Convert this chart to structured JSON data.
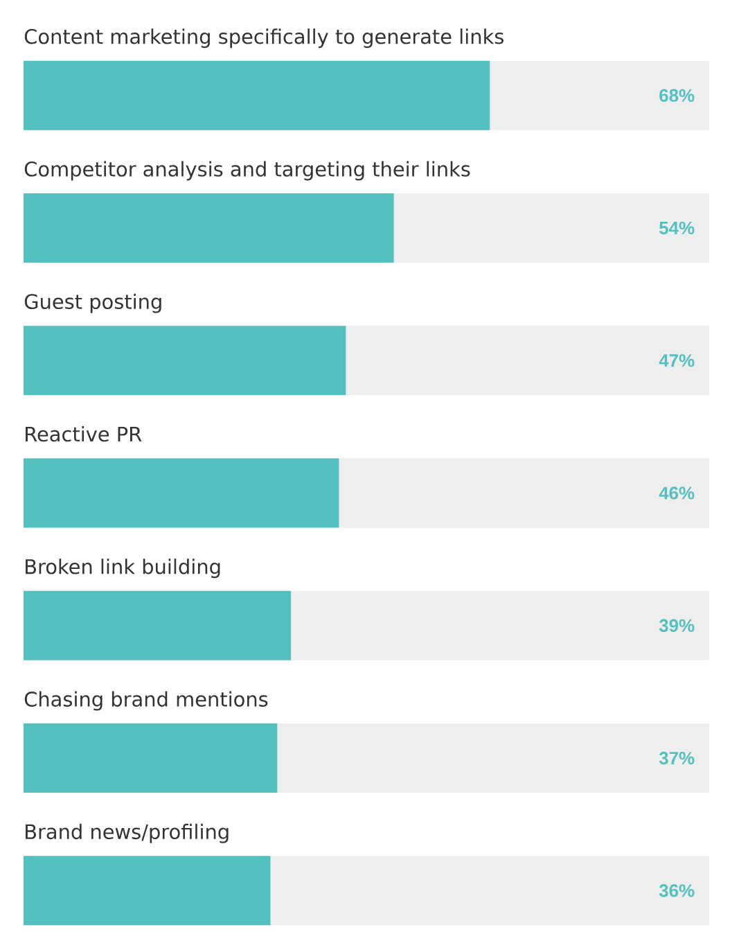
{
  "chart_data": {
    "type": "bar",
    "orientation": "horizontal",
    "categories": [
      "Content marketing specifically to generate links",
      "Competitor analysis and targeting their links",
      "Guest posting",
      "Reactive PR",
      "Broken link building",
      "Chasing brand mentions",
      "Brand news/profiling"
    ],
    "series": [
      {
        "color": "#53bfbf",
        "values": [
          68,
          54,
          47,
          46,
          39,
          37,
          36
        ],
        "value_labels": [
          "68%",
          "54%",
          "47%",
          "46%",
          "39%",
          "37%",
          "36%"
        ]
      }
    ],
    "xlim": [
      0,
      100
    ],
    "tick_labels": false
  }
}
